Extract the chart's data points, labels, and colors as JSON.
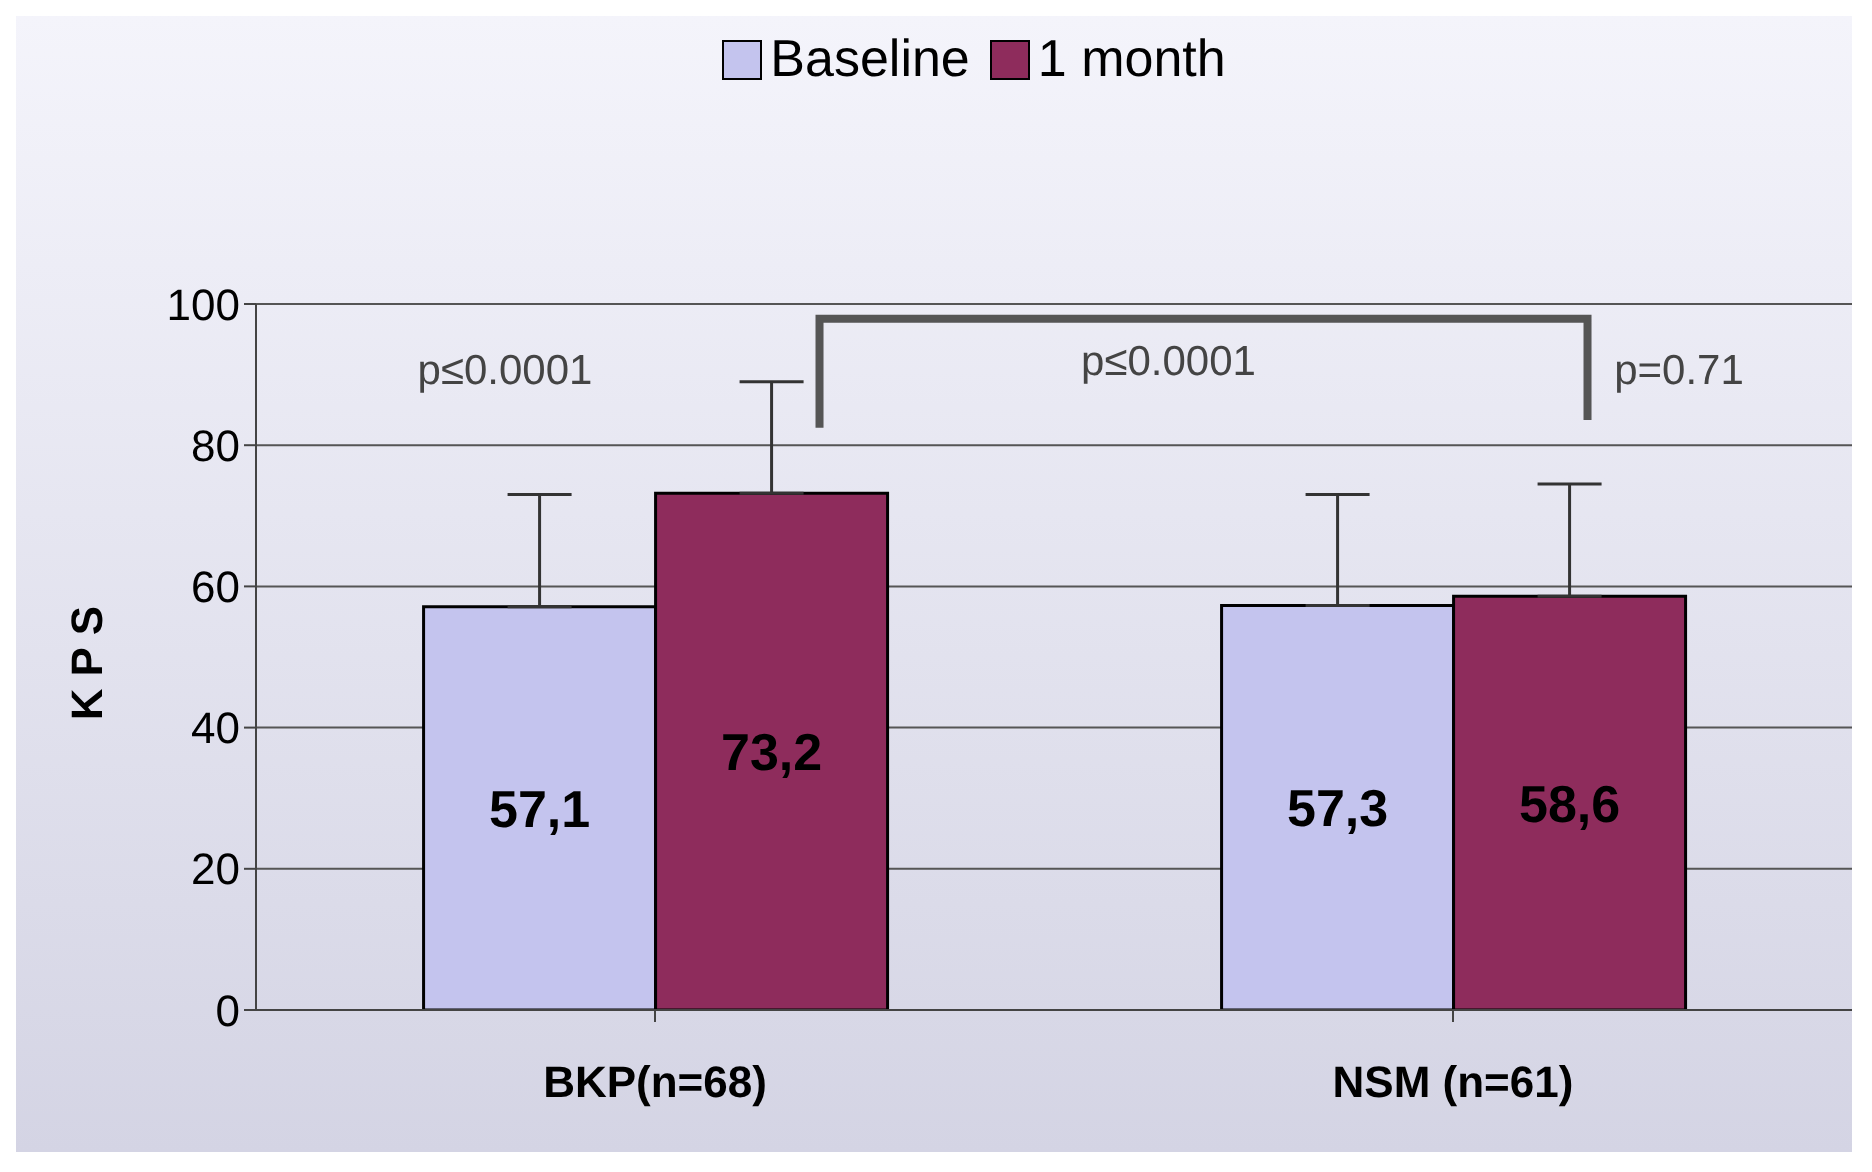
{
  "chart_data": {
    "type": "bar",
    "ylabel": "KPS",
    "categories": [
      "BKP(n=68)",
      "NSM (n=61)"
    ],
    "series": [
      {
        "name": "Baseline",
        "color": "#c4c4ee",
        "values": [
          57.1,
          57.3
        ],
        "errors": [
          [
            57.1,
            73
          ],
          [
            57.3,
            73
          ]
        ],
        "value_labels": [
          "57,1",
          "57,3"
        ]
      },
      {
        "name": "1 month",
        "color": "#8e2c5c",
        "values": [
          73.2,
          58.6
        ],
        "errors": [
          [
            73.2,
            89
          ],
          [
            58.6,
            74.5
          ]
        ],
        "value_labels": [
          "73,2",
          "58,6"
        ]
      }
    ],
    "ylim": [
      0,
      100
    ],
    "yticks": [
      0,
      20,
      40,
      60,
      80,
      100
    ],
    "grid": "y",
    "legend": "top",
    "annotations": [
      "p≤0.0001",
      "p≤0.0001",
      "p=0.71"
    ]
  }
}
